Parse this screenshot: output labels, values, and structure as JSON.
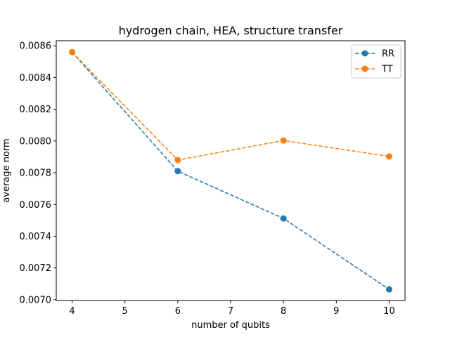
{
  "chart_data": {
    "type": "line",
    "title": "hydrogen chain, HEA, structure transfer",
    "xlabel": "number of qubits",
    "ylabel": "average norm",
    "xlim": [
      3.7,
      10.3
    ],
    "ylim": [
      0.006995,
      0.008632
    ],
    "xticks": [
      4,
      5,
      6,
      7,
      8,
      9,
      10
    ],
    "xtick_labels": [
      "4",
      "5",
      "6",
      "7",
      "8",
      "9",
      "10"
    ],
    "yticks": [
      0.007,
      0.0072,
      0.0074,
      0.0076,
      0.0078,
      0.008,
      0.0082,
      0.0084,
      0.0086
    ],
    "ytick_labels": [
      "0.0070",
      "0.0072",
      "0.0074",
      "0.0076",
      "0.0078",
      "0.0080",
      "0.0082",
      "0.0084",
      "0.0086"
    ],
    "grid": false,
    "legend_position": "top-right",
    "series": [
      {
        "name": "RR",
        "color": "#1f77b4",
        "linestyle": "dashed",
        "marker": "circle",
        "x": [
          4,
          6,
          8,
          10
        ],
        "y": [
          0.00856,
          0.00781,
          0.007512,
          0.007065
        ]
      },
      {
        "name": "TT",
        "color": "#ff7f0e",
        "linestyle": "dashed",
        "marker": "circle",
        "x": [
          4,
          6,
          8,
          10
        ],
        "y": [
          0.00856,
          0.00788,
          0.008003,
          0.007903
        ]
      }
    ]
  }
}
